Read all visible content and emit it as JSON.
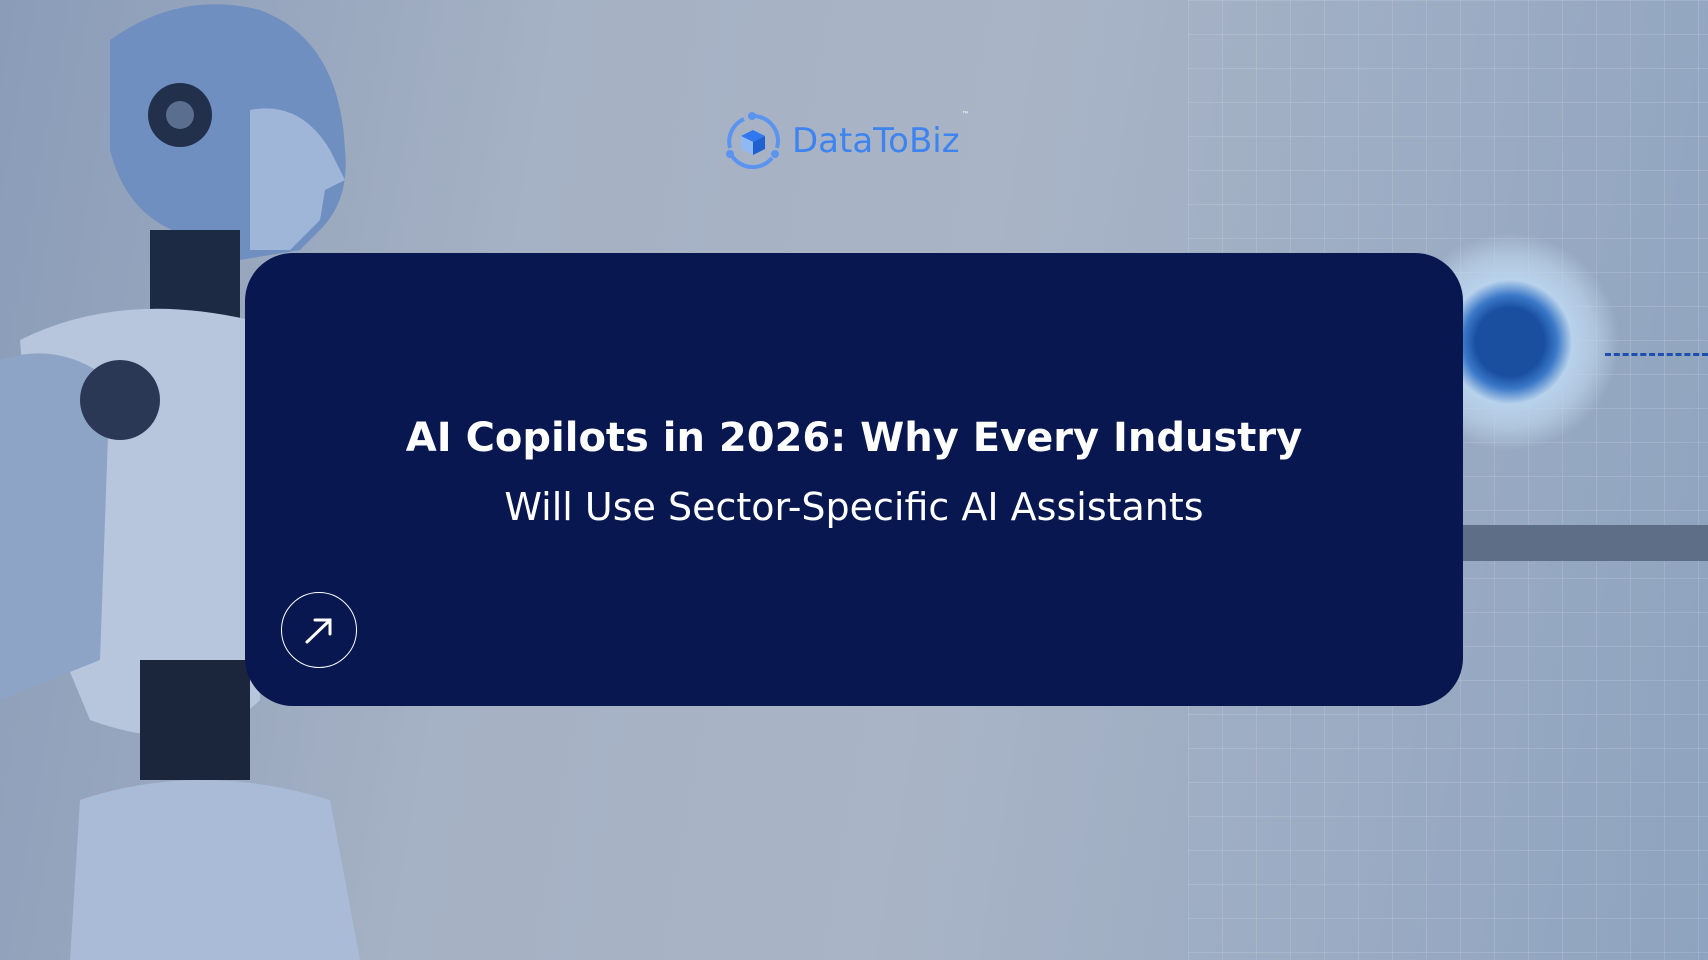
{
  "logo": {
    "text": "DataToBiz",
    "trademark": "™",
    "brand_color": "#3d84f0"
  },
  "card": {
    "title": "AI Copilots in 2026: Why Every Industry",
    "subtitle": "Will Use Sector-Specific AI Assistants",
    "background_color": "#08174f",
    "action_icon": "arrow-up-right-icon"
  }
}
